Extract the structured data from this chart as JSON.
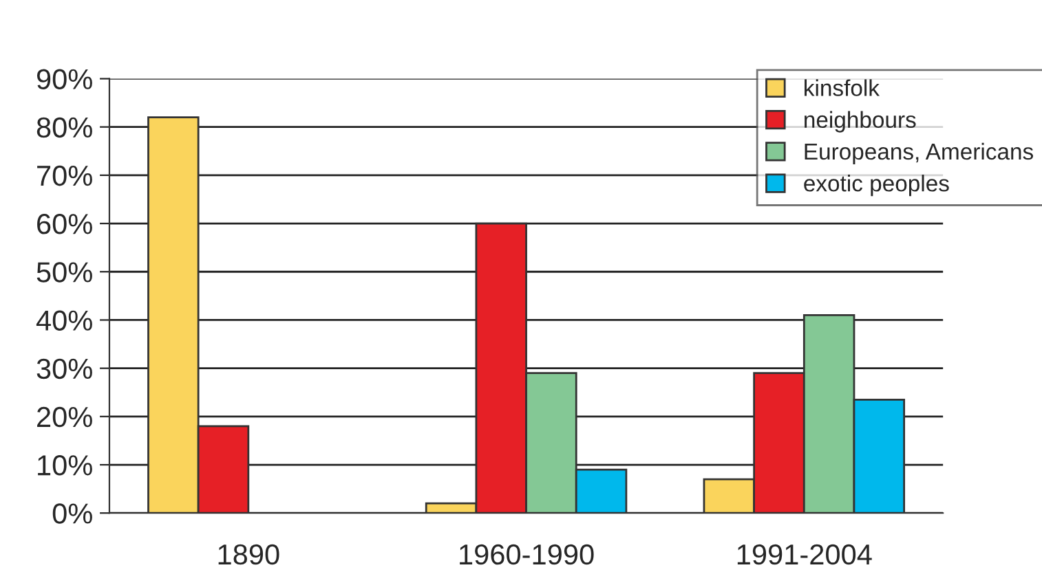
{
  "chart_data": {
    "type": "bar",
    "categories": [
      "1890",
      "1960-1990",
      "1991-2004"
    ],
    "series": [
      {
        "name": "kinsfolk",
        "color": "#fad45c",
        "values": [
          82,
          2,
          7
        ]
      },
      {
        "name": "neighbours",
        "color": "#e62026",
        "values": [
          18,
          60,
          29
        ]
      },
      {
        "name": "Europeans, Americans",
        "color": "#84c895",
        "values": [
          null,
          29,
          41
        ]
      },
      {
        "name": "exotic peoples",
        "color": "#00b8ec",
        "values": [
          null,
          9,
          23.5
        ]
      }
    ],
    "ylim": [
      0,
      90
    ],
    "yticks": [
      {
        "value": 0,
        "label": "0%"
      },
      {
        "value": 10,
        "label": "10%"
      },
      {
        "value": 20,
        "label": "20%"
      },
      {
        "value": 30,
        "label": "30%"
      },
      {
        "value": 40,
        "label": "40%"
      },
      {
        "value": 50,
        "label": "50%"
      },
      {
        "value": 60,
        "label": "60%"
      },
      {
        "value": 70,
        "label": "70%"
      },
      {
        "value": 80,
        "label": "80%"
      },
      {
        "value": 90,
        "label": "90%"
      }
    ],
    "grid": "y",
    "legend": "top right"
  }
}
